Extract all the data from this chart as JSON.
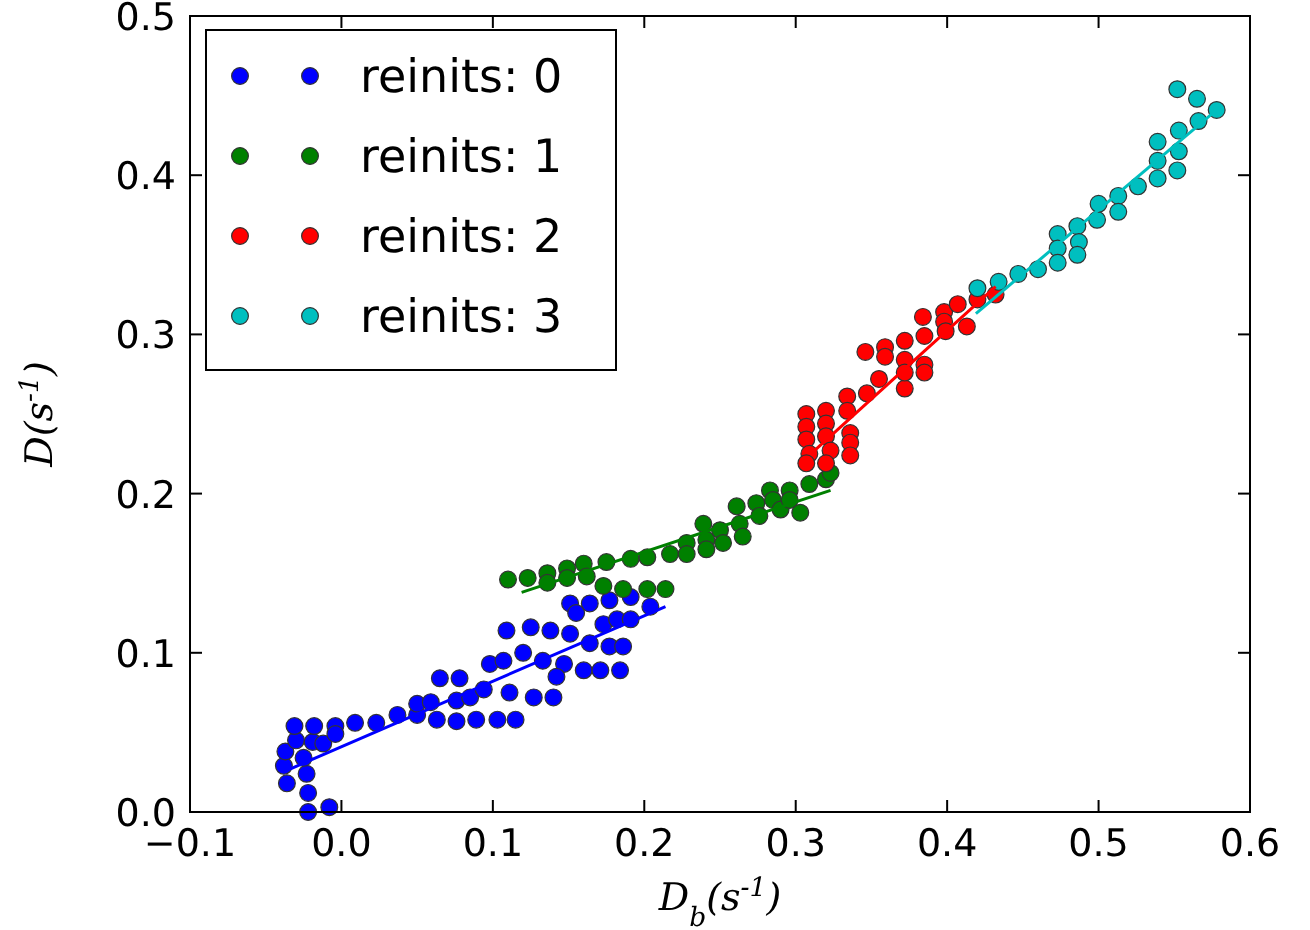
{
  "chart_data": {
    "type": "scatter",
    "xlabel": "D$_{b}$(s$^{-1}$)",
    "ylabel": "D(s$^{-1}$)",
    "xlim": [
      -0.1,
      0.6
    ],
    "ylim": [
      0,
      0.5
    ],
    "xticks": [
      {
        "value": -0.1,
        "label": "−0.1"
      },
      {
        "value": 0,
        "label": "0.0"
      },
      {
        "value": 0.1,
        "label": "0.1"
      },
      {
        "value": 0.2,
        "label": "0.2"
      },
      {
        "value": 0.3,
        "label": "0.3"
      },
      {
        "value": 0.4,
        "label": "0.4"
      },
      {
        "value": 0.5,
        "label": "0.5"
      },
      {
        "value": 0.6,
        "label": "0.6"
      }
    ],
    "yticks": [
      {
        "value": 0,
        "label": "0.0"
      },
      {
        "value": 0.1,
        "label": "0.1"
      },
      {
        "value": 0.2,
        "label": "0.2"
      },
      {
        "value": 0.3,
        "label": "0.3"
      },
      {
        "value": 0.4,
        "label": "0.4"
      },
      {
        "value": 0.5,
        "label": "0.5"
      }
    ],
    "legend": "top left",
    "grid": false,
    "series": [
      {
        "marker": "circle",
        "name": "reinits: 0",
        "color": "#0000ff",
        "x": [
          -0.022,
          -0.008,
          -0.022,
          -0.036,
          -0.023,
          -0.038,
          -0.025,
          -0.037,
          -0.03,
          -0.019,
          -0.012,
          -0.031,
          -0.018,
          -0.004,
          0.009,
          -0.004,
          0.023,
          0.037,
          0.05,
          0.05,
          0.059,
          0.065,
          0.063,
          0.076,
          0.078,
          0.076,
          0.089,
          0.103,
          0.115,
          0.085,
          0.094,
          0.098,
          0.107,
          0.111,
          0.127,
          0.14,
          0.109,
          0.125,
          0.138,
          0.12,
          0.133,
          0.147,
          0.16,
          0.171,
          0.184,
          0.142,
          0.151,
          0.164,
          0.173,
          0.182,
          0.177,
          0.186,
          0.151,
          0.164,
          0.177,
          0.191,
          0.204,
          0.191,
          0.155
        ],
        "values": [
          0,
          0.003,
          0.012,
          0.018,
          0.024,
          0.029,
          0.034,
          0.038,
          0.045,
          0.044,
          0.043,
          0.054,
          0.054,
          0.054,
          0.056,
          0.049,
          0.056,
          0.061,
          0.061,
          0.068,
          0.069,
          0.084,
          0.058,
          0.057,
          0.084,
          0.07,
          0.058,
          0.058,
          0.058,
          0.072,
          0.077,
          0.093,
          0.095,
          0.075,
          0.072,
          0.072,
          0.114,
          0.116,
          0.114,
          0.1,
          0.095,
          0.093,
          0.089,
          0.089,
          0.089,
          0.085,
          0.112,
          0.106,
          0.118,
          0.121,
          0.104,
          0.104,
          0.131,
          0.131,
          0.133,
          0.135,
          0.129,
          0.121,
          0.125
        ]
      },
      {
        "marker": "circle",
        "name": "reinits: 1",
        "color": "#008000",
        "x": [
          0.11,
          0.123,
          0.136,
          0.136,
          0.149,
          0.149,
          0.16,
          0.162,
          0.175,
          0.191,
          0.202,
          0.217,
          0.228,
          0.228,
          0.239,
          0.241,
          0.241,
          0.25,
          0.252,
          0.261,
          0.263,
          0.265,
          0.274,
          0.276,
          0.283,
          0.285,
          0.29,
          0.296,
          0.296,
          0.303,
          0.309,
          0.32,
          0.323,
          0.173,
          0.186,
          0.202,
          0.214
        ],
        "values": [
          0.146,
          0.147,
          0.15,
          0.144,
          0.153,
          0.147,
          0.156,
          0.148,
          0.157,
          0.159,
          0.16,
          0.162,
          0.169,
          0.162,
          0.181,
          0.171,
          0.165,
          0.177,
          0.169,
          0.192,
          0.181,
          0.173,
          0.194,
          0.186,
          0.202,
          0.196,
          0.19,
          0.202,
          0.196,
          0.188,
          0.206,
          0.209,
          0.213,
          0.142,
          0.14,
          0.14,
          0.14
        ]
      },
      {
        "marker": "circle",
        "name": "reinits: 2",
        "color": "#ff0000",
        "x": [
          0.307,
          0.307,
          0.307,
          0.309,
          0.307,
          0.32,
          0.32,
          0.32,
          0.323,
          0.32,
          0.334,
          0.334,
          0.336,
          0.336,
          0.336,
          0.347,
          0.355,
          0.372,
          0.346,
          0.359,
          0.359,
          0.372,
          0.372,
          0.372,
          0.385,
          0.385,
          0.385,
          0.384,
          0.398,
          0.398,
          0.399,
          0.407,
          0.413,
          0.42,
          0.432
        ],
        "values": [
          0.25,
          0.242,
          0.234,
          0.225,
          0.219,
          0.252,
          0.244,
          0.236,
          0.227,
          0.219,
          0.261,
          0.252,
          0.238,
          0.232,
          0.224,
          0.263,
          0.272,
          0.266,
          0.289,
          0.292,
          0.286,
          0.296,
          0.284,
          0.276,
          0.299,
          0.281,
          0.276,
          0.311,
          0.314,
          0.308,
          0.302,
          0.319,
          0.305,
          0.322,
          0.325
        ]
      },
      {
        "marker": "circle",
        "name": "reinits: 3",
        "color": "#00bfbf",
        "x": [
          0.42,
          0.434,
          0.447,
          0.46,
          0.473,
          0.473,
          0.473,
          0.486,
          0.487,
          0.486,
          0.499,
          0.5,
          0.513,
          0.513,
          0.526,
          0.539,
          0.539,
          0.539,
          0.552,
          0.553,
          0.553,
          0.566,
          0.578,
          0.565,
          0.552
        ],
        "values": [
          0.329,
          0.333,
          0.338,
          0.341,
          0.363,
          0.354,
          0.345,
          0.368,
          0.358,
          0.35,
          0.372,
          0.382,
          0.387,
          0.377,
          0.393,
          0.398,
          0.409,
          0.421,
          0.403,
          0.415,
          0.428,
          0.434,
          0.441,
          0.448,
          0.454
        ]
      },
      {
        "type": "line",
        "marker": "none",
        "color": "#0000ff",
        "x": [
          -0.034,
          0.214
        ],
        "values": [
          0.027,
          0.129
        ]
      },
      {
        "type": "line",
        "marker": "none",
        "color": "#008000",
        "x": [
          0.119,
          0.323
        ],
        "values": [
          0.138,
          0.202
        ]
      },
      {
        "type": "line",
        "marker": "none",
        "color": "#ff0000",
        "x": [
          0.31,
          0.432
        ],
        "values": [
          0.225,
          0.33
        ]
      },
      {
        "type": "line",
        "marker": "none",
        "color": "#00bfbf",
        "x": [
          0.419,
          0.578
        ],
        "values": [
          0.313,
          0.441
        ]
      }
    ]
  }
}
